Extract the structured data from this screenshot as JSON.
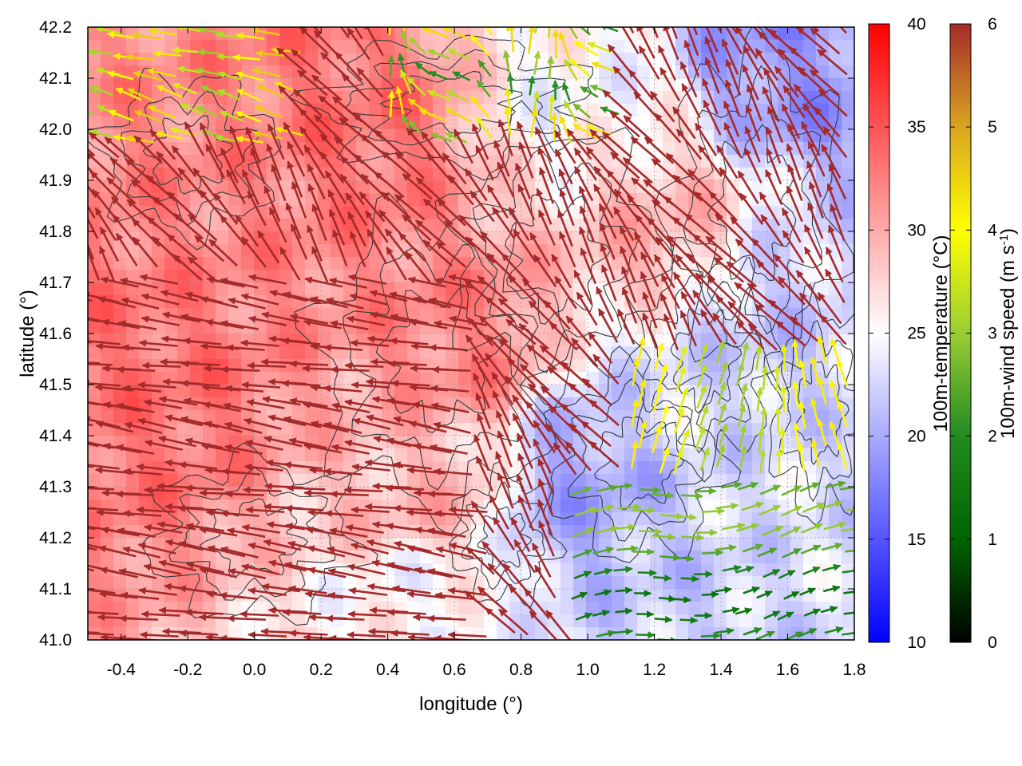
{
  "chart_data": {
    "type": "heatmap",
    "xlabel": "longitude (°)",
    "ylabel": "latitude (°)",
    "xlim": [
      -0.5,
      1.8
    ],
    "ylim": [
      41.0,
      42.2
    ],
    "x_ticks": [
      "-0.4",
      "-0.2",
      "0.0",
      "0.2",
      "0.4",
      "0.6",
      "0.8",
      "1.0",
      "1.2",
      "1.4",
      "1.6",
      "1.8"
    ],
    "y_ticks": [
      "41.0",
      "41.1",
      "41.2",
      "41.3",
      "41.4",
      "41.5",
      "41.6",
      "41.7",
      "41.8",
      "41.9",
      "42.0",
      "42.1",
      "42.2"
    ],
    "grid": true,
    "layers": [
      "temperature shading",
      "terrain contours",
      "wind vectors"
    ],
    "colorbars": [
      {
        "name": "temperature",
        "label": "100m-temperature (°C)",
        "range": [
          10,
          40
        ],
        "ticks": [
          "10",
          "15",
          "20",
          "25",
          "30",
          "35",
          "40"
        ],
        "colors": [
          "#0000ff",
          "#ffffff",
          "#ff0000"
        ]
      },
      {
        "name": "wind",
        "label_main": "100m-wind speed (m s",
        "label_sup": "-1",
        "label_end": ")",
        "range": [
          0,
          6
        ],
        "ticks": [
          "0",
          "1",
          "2",
          "3",
          "4",
          "5",
          "6"
        ],
        "colors": [
          "#000000",
          "#006400",
          "#228b22",
          "#9acd32",
          "#ffff00",
          "#daa520",
          "#a52a2a"
        ]
      }
    ],
    "temperature_regions": [
      {
        "lon": -0.3,
        "lat": 41.5,
        "temp": 33
      },
      {
        "lon": 0.0,
        "lat": 41.8,
        "temp": 32
      },
      {
        "lon": 0.3,
        "lat": 42.0,
        "temp": 33
      },
      {
        "lon": 0.6,
        "lat": 41.6,
        "temp": 32
      },
      {
        "lon": 0.5,
        "lat": 41.3,
        "temp": 29
      },
      {
        "lon": 0.5,
        "lat": 41.05,
        "temp": 25
      },
      {
        "lon": 1.0,
        "lat": 41.3,
        "temp": 20
      },
      {
        "lon": 1.3,
        "lat": 41.1,
        "temp": 22
      },
      {
        "lon": 1.6,
        "lat": 41.2,
        "temp": 23
      },
      {
        "lon": 1.5,
        "lat": 41.6,
        "temp": 22
      },
      {
        "lon": 1.3,
        "lat": 41.5,
        "temp": 23
      },
      {
        "lon": 1.2,
        "lat": 41.8,
        "temp": 29
      },
      {
        "lon": 1.6,
        "lat": 42.15,
        "temp": 19
      },
      {
        "lon": 1.0,
        "lat": 42.05,
        "temp": 25
      }
    ],
    "wind_regimes": [
      {
        "region": "west-southwest",
        "direction": "westward",
        "speed": 6
      },
      {
        "region": "northwest",
        "direction": "west-northwest",
        "speed": 4
      },
      {
        "region": "central",
        "direction": "northwest",
        "speed": 6
      },
      {
        "region": "southeast",
        "direction": "eastward",
        "speed": 2.5
      },
      {
        "region": "east-central",
        "direction": "north",
        "speed": 4
      }
    ]
  }
}
